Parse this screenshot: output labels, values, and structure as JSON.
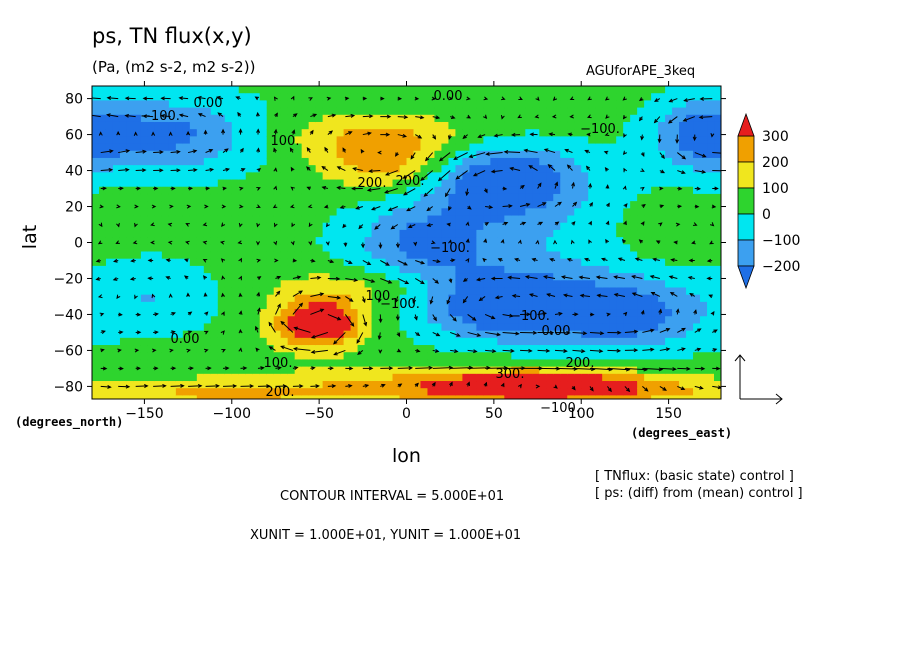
{
  "title": "ps, TN flux(x,y)",
  "subtitle": "(Pa, (m2 s-2, m2 s-2))",
  "tag": "AGUforAPE_3keq",
  "x_unit_label": "(degrees_north)",
  "x_unit_label_east": "(degrees_east)",
  "x_axis_name": "lon",
  "y_axis_name": "lat",
  "contour_interval": "CONTOUR INTERVAL = 5.000E+01",
  "units_line": "XUNIT = 1.000E+01, YUNIT = 1.000E+01",
  "note_tnflux": "[ TNflux: (basic state) control ]",
  "note_ps": "[ ps: (diff) from (mean) control ]",
  "colors": {
    "level_lt_m200": "#1e6fe6",
    "level_m200_m100": "#3ca0f0",
    "level_m100_0": "#00e6f0",
    "level_0_100": "#2ed42e",
    "level_100_200": "#f0e61e",
    "level_200_300": "#f0a000",
    "level_gt_300": "#e61e1e"
  },
  "chart_data": {
    "type": "heatmap",
    "subtype": "filled contour with vector overlay",
    "xlim": [
      -180,
      180
    ],
    "ylim": [
      -87,
      87
    ],
    "x_ticks": [
      -150,
      -100,
      -50,
      0,
      50,
      100,
      150
    ],
    "y_ticks": [
      80,
      60,
      40,
      20,
      0,
      -20,
      -40,
      -60,
      -80
    ],
    "colorbar": {
      "levels": [
        -200,
        -100,
        0,
        100,
        200,
        300
      ],
      "labels": [
        "300",
        "200",
        "100",
        "0",
        "-100",
        "-200"
      ],
      "extend": "both"
    },
    "contour_labels": [
      "0.00",
      "0.00",
      "-100.",
      "-100.",
      "100.",
      "200.",
      "-100.",
      "-100.",
      "0.00",
      "0.00",
      "-100.",
      "-100.",
      "100.",
      "200.",
      "200.",
      "300.",
      "100.",
      "200."
    ],
    "features": [
      {
        "type": "high",
        "lon": -50,
        "lat": -45,
        "value": 300
      },
      {
        "type": "high",
        "lon": 80,
        "lat": -80,
        "value": 300
      },
      {
        "type": "high",
        "lon": -10,
        "lat": 45,
        "value": 200
      },
      {
        "type": "low",
        "lon": 55,
        "lat": 35,
        "value": -200
      },
      {
        "type": "low",
        "lon": 55,
        "lat": -35,
        "value": -200
      },
      {
        "type": "low",
        "lon": 125,
        "lat": -40,
        "value": -200
      },
      {
        "type": "low",
        "lon": -135,
        "lat": 60,
        "value": -200
      },
      {
        "type": "low",
        "lon": 10,
        "lat": 0,
        "value": -100
      }
    ],
    "reference_vector": {
      "x": 10,
      "y": 10
    }
  }
}
